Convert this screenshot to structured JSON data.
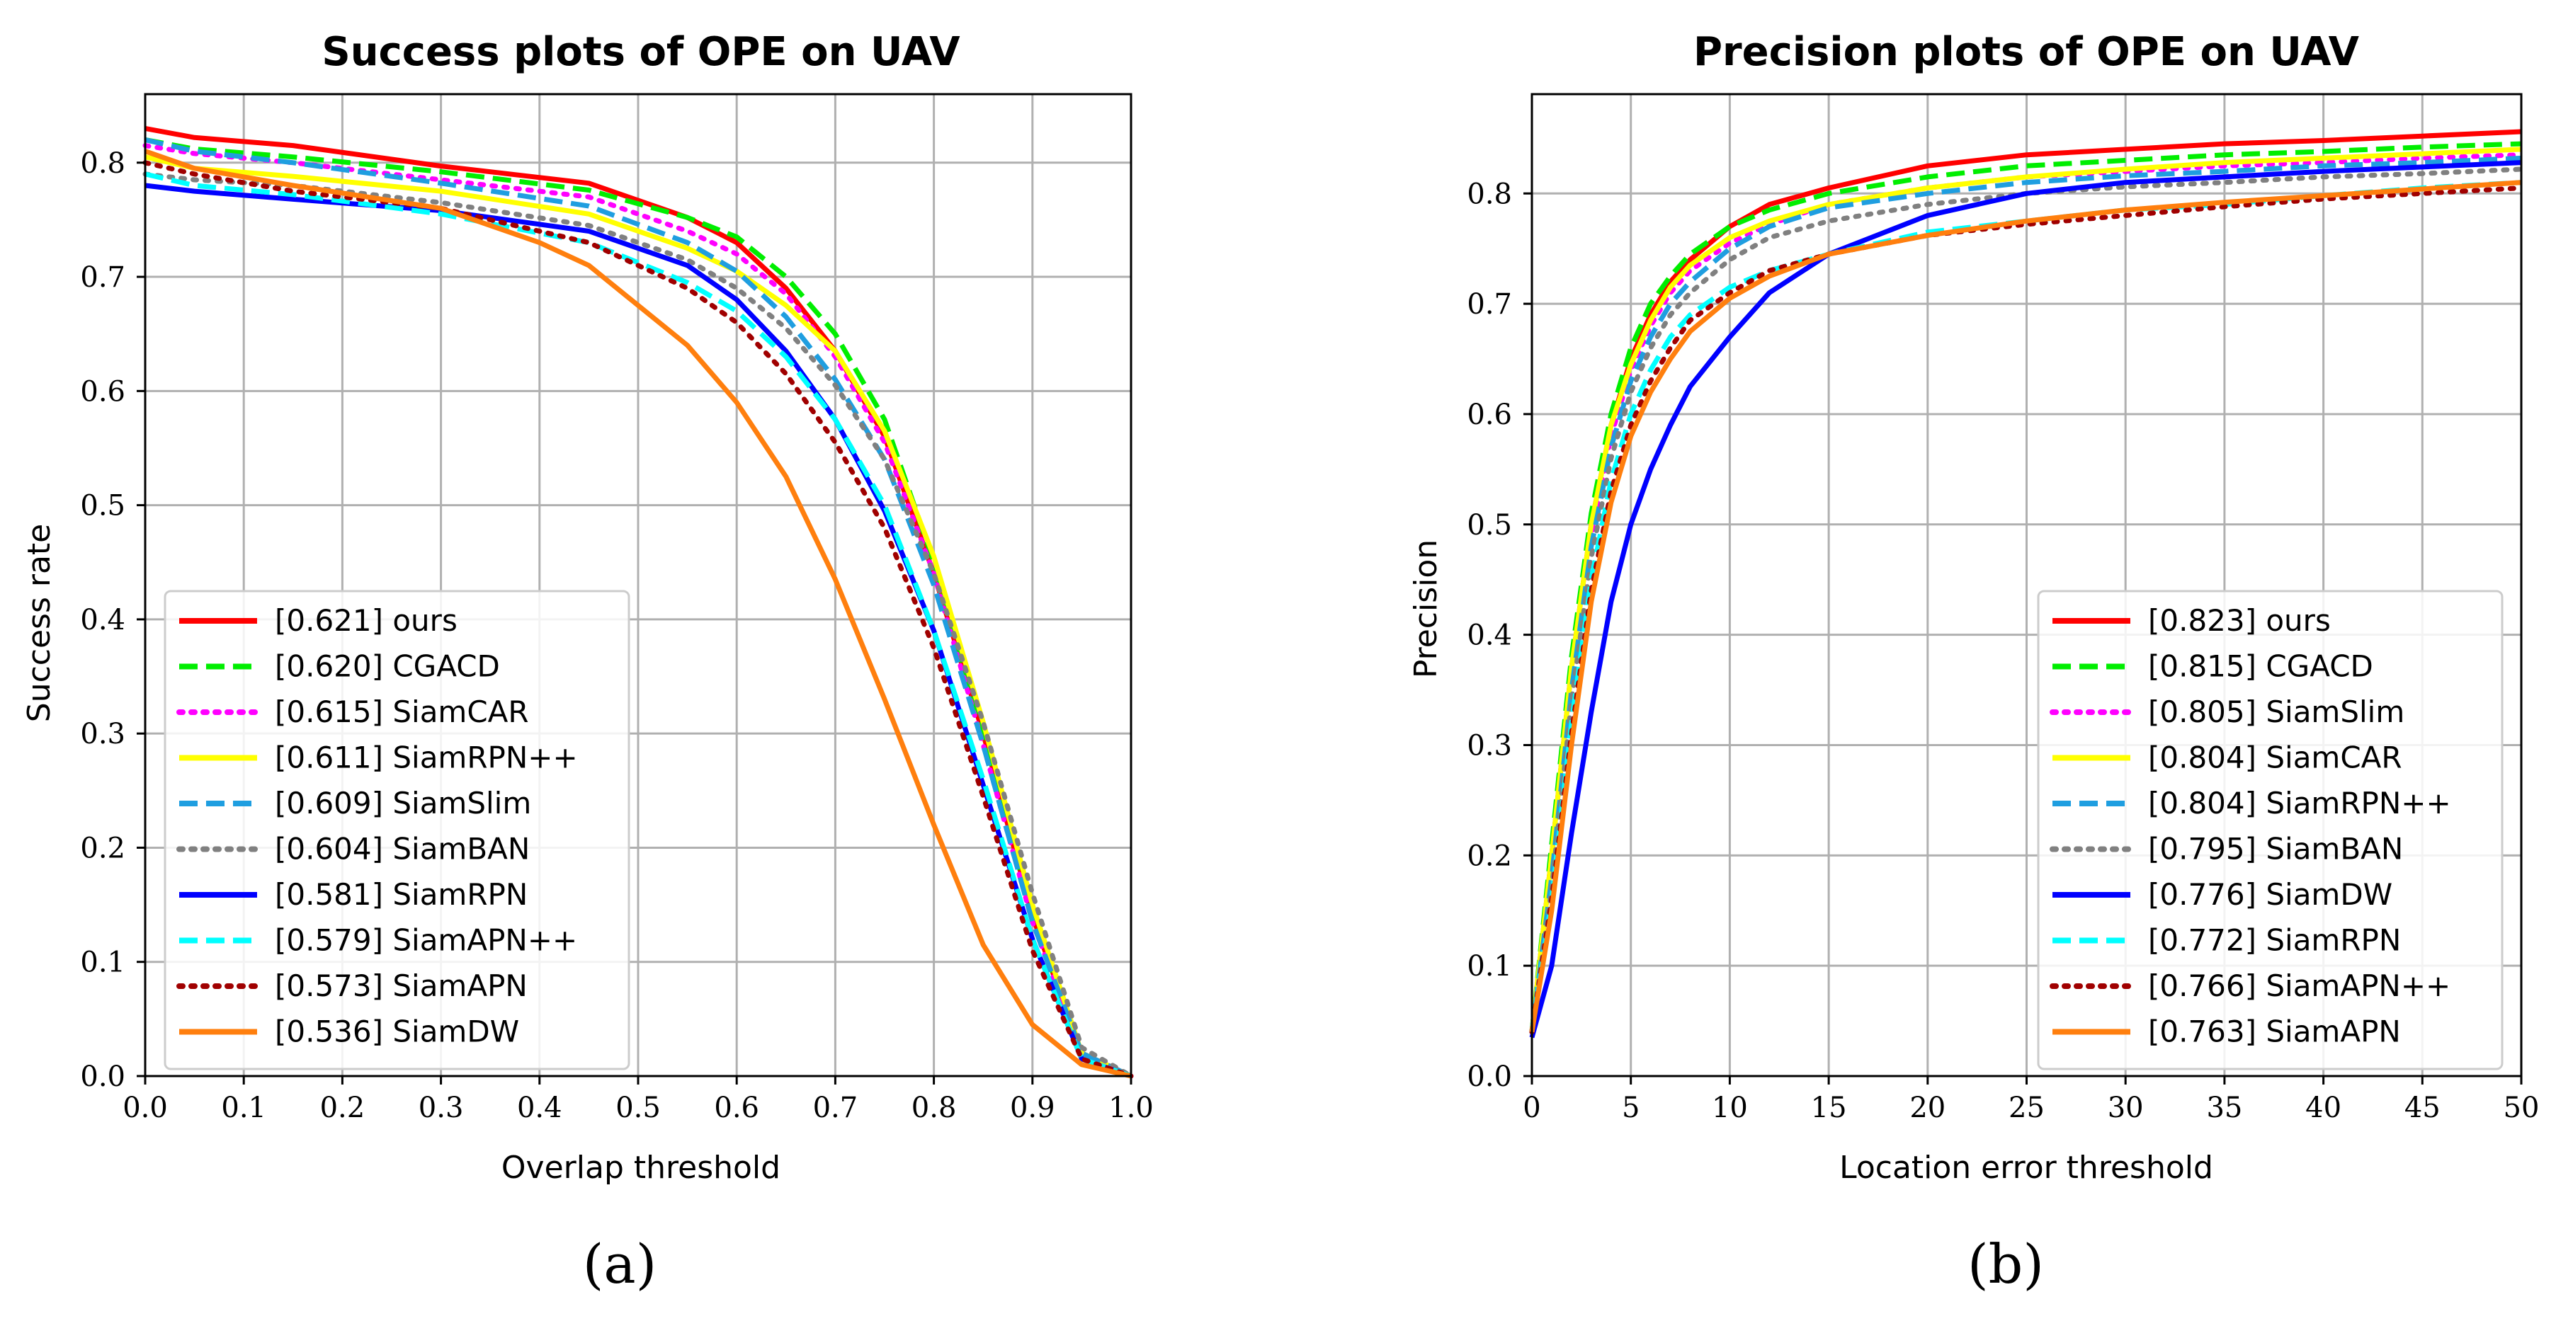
{
  "chart_data": [
    {
      "type": "line",
      "title": "Success plots of OPE on UAV",
      "xlabel": "Overlap threshold",
      "ylabel": "Success rate",
      "caption": "(a)",
      "xlim": [
        0,
        1
      ],
      "ylim": [
        0,
        0.86
      ],
      "xticks": [
        0.0,
        0.1,
        0.2,
        0.3,
        0.4,
        0.5,
        0.6,
        0.7,
        0.8,
        0.9,
        1.0
      ],
      "yticks": [
        0.0,
        0.1,
        0.2,
        0.3,
        0.4,
        0.5,
        0.6,
        0.7,
        0.8
      ],
      "xtick_labels": [
        "0.0",
        "0.1",
        "0.2",
        "0.3",
        "0.4",
        "0.5",
        "0.6",
        "0.7",
        "0.8",
        "0.9",
        "1.0"
      ],
      "ytick_labels": [
        "0.0",
        "0.1",
        "0.2",
        "0.3",
        "0.4",
        "0.5",
        "0.6",
        "0.7",
        "0.8"
      ],
      "grid": true,
      "legend_position": "lower-left",
      "series": [
        {
          "name": "[0.621] ours",
          "color": "#ff0000",
          "dash": "solid",
          "x": [
            0,
            0.05,
            0.15,
            0.3,
            0.45,
            0.55,
            0.6,
            0.65,
            0.7,
            0.75,
            0.8,
            0.85,
            0.9,
            0.95,
            1.0
          ],
          "y": [
            0.83,
            0.822,
            0.815,
            0.797,
            0.782,
            0.752,
            0.73,
            0.69,
            0.635,
            0.56,
            0.44,
            0.3,
            0.14,
            0.02,
            0.0
          ]
        },
        {
          "name": "[0.620] CGACD",
          "color": "#00ee00",
          "dash": "dashed",
          "x": [
            0,
            0.05,
            0.15,
            0.3,
            0.45,
            0.55,
            0.6,
            0.65,
            0.7,
            0.75,
            0.8,
            0.85,
            0.9,
            0.95,
            1.0
          ],
          "y": [
            0.82,
            0.812,
            0.805,
            0.792,
            0.776,
            0.752,
            0.735,
            0.7,
            0.65,
            0.575,
            0.45,
            0.3,
            0.14,
            0.02,
            0.0
          ]
        },
        {
          "name": "[0.615] SiamCAR",
          "color": "#ff00ff",
          "dash": "dotted",
          "x": [
            0,
            0.05,
            0.15,
            0.3,
            0.45,
            0.55,
            0.6,
            0.65,
            0.7,
            0.75,
            0.8,
            0.85,
            0.9,
            0.95,
            1.0
          ],
          "y": [
            0.815,
            0.808,
            0.8,
            0.785,
            0.77,
            0.74,
            0.72,
            0.685,
            0.63,
            0.555,
            0.44,
            0.29,
            0.135,
            0.02,
            0.0
          ]
        },
        {
          "name": "[0.611] SiamRPN++",
          "color": "#ffff00",
          "dash": "solid",
          "x": [
            0,
            0.05,
            0.15,
            0.3,
            0.45,
            0.55,
            0.6,
            0.65,
            0.7,
            0.75,
            0.8,
            0.85,
            0.9,
            0.95,
            1.0
          ],
          "y": [
            0.805,
            0.795,
            0.788,
            0.775,
            0.755,
            0.725,
            0.705,
            0.675,
            0.635,
            0.565,
            0.455,
            0.31,
            0.15,
            0.02,
            0.0
          ]
        },
        {
          "name": "[0.609] SiamSlim",
          "color": "#1f9ee0",
          "dash": "dashed",
          "x": [
            0,
            0.05,
            0.15,
            0.3,
            0.45,
            0.55,
            0.6,
            0.65,
            0.7,
            0.75,
            0.8,
            0.85,
            0.9,
            0.95,
            1.0
          ],
          "y": [
            0.82,
            0.81,
            0.8,
            0.782,
            0.762,
            0.73,
            0.705,
            0.665,
            0.61,
            0.54,
            0.43,
            0.29,
            0.135,
            0.02,
            0.0
          ]
        },
        {
          "name": "[0.604] SiamBAN",
          "color": "#808080",
          "dash": "dotted",
          "x": [
            0,
            0.05,
            0.15,
            0.3,
            0.45,
            0.55,
            0.6,
            0.65,
            0.7,
            0.75,
            0.8,
            0.85,
            0.9,
            0.95,
            1.0
          ],
          "y": [
            0.79,
            0.785,
            0.78,
            0.765,
            0.745,
            0.715,
            0.69,
            0.655,
            0.605,
            0.54,
            0.44,
            0.31,
            0.16,
            0.025,
            0.0
          ]
        },
        {
          "name": "[0.581] SiamRPN",
          "color": "#0000ff",
          "dash": "solid",
          "x": [
            0,
            0.05,
            0.15,
            0.3,
            0.45,
            0.55,
            0.6,
            0.65,
            0.7,
            0.75,
            0.8,
            0.85,
            0.9,
            0.95,
            1.0
          ],
          "y": [
            0.78,
            0.775,
            0.768,
            0.758,
            0.74,
            0.71,
            0.68,
            0.635,
            0.575,
            0.495,
            0.39,
            0.255,
            0.12,
            0.015,
            0.0
          ]
        },
        {
          "name": "[0.579] SiamAPN++",
          "color": "#00ffff",
          "dash": "dashed",
          "x": [
            0,
            0.05,
            0.15,
            0.3,
            0.45,
            0.55,
            0.6,
            0.65,
            0.7,
            0.75,
            0.8,
            0.85,
            0.9,
            0.95,
            1.0
          ],
          "y": [
            0.79,
            0.78,
            0.772,
            0.755,
            0.73,
            0.695,
            0.67,
            0.63,
            0.575,
            0.5,
            0.39,
            0.26,
            0.12,
            0.015,
            0.0
          ]
        },
        {
          "name": "[0.573] SiamAPN",
          "color": "#a00000",
          "dash": "dotted",
          "x": [
            0,
            0.05,
            0.15,
            0.3,
            0.45,
            0.55,
            0.6,
            0.65,
            0.7,
            0.75,
            0.8,
            0.85,
            0.9,
            0.95,
            1.0
          ],
          "y": [
            0.8,
            0.79,
            0.775,
            0.76,
            0.73,
            0.69,
            0.66,
            0.615,
            0.555,
            0.48,
            0.375,
            0.245,
            0.11,
            0.015,
            0.0
          ]
        },
        {
          "name": "[0.536] SiamDW",
          "color": "#ff7f0e",
          "dash": "solid",
          "x": [
            0,
            0.05,
            0.15,
            0.3,
            0.4,
            0.45,
            0.5,
            0.55,
            0.6,
            0.65,
            0.7,
            0.75,
            0.8,
            0.85,
            0.9,
            0.95,
            1.0
          ],
          "y": [
            0.81,
            0.795,
            0.78,
            0.76,
            0.73,
            0.71,
            0.675,
            0.64,
            0.59,
            0.525,
            0.435,
            0.33,
            0.22,
            0.115,
            0.045,
            0.01,
            0.0
          ]
        }
      ]
    },
    {
      "type": "line",
      "title": "Precision plots of OPE on UAV",
      "xlabel": "Location error threshold",
      "ylabel": "Precision",
      "caption": "(b)",
      "xlim": [
        0,
        50
      ],
      "ylim": [
        0,
        0.89
      ],
      "xticks": [
        0,
        5,
        10,
        15,
        20,
        25,
        30,
        35,
        40,
        45,
        50
      ],
      "yticks": [
        0.0,
        0.1,
        0.2,
        0.3,
        0.4,
        0.5,
        0.6,
        0.7,
        0.8
      ],
      "xtick_labels": [
        "0",
        "5",
        "10",
        "15",
        "20",
        "25",
        "30",
        "35",
        "40",
        "45",
        "50"
      ],
      "ytick_labels": [
        "0.0",
        "0.1",
        "0.2",
        "0.3",
        "0.4",
        "0.5",
        "0.6",
        "0.7",
        "0.8"
      ],
      "grid": true,
      "legend_position": "lower-right",
      "series": [
        {
          "name": "[0.823] ours",
          "color": "#ff0000",
          "dash": "solid",
          "x": [
            0,
            1,
            2,
            3,
            4,
            5,
            6,
            7,
            8,
            10,
            12,
            15,
            20,
            25,
            30,
            35,
            40,
            45,
            50
          ],
          "y": [
            0.04,
            0.2,
            0.37,
            0.5,
            0.59,
            0.65,
            0.69,
            0.72,
            0.74,
            0.77,
            0.79,
            0.805,
            0.825,
            0.835,
            0.84,
            0.845,
            0.848,
            0.852,
            0.856
          ]
        },
        {
          "name": "[0.815] CGACD",
          "color": "#00ee00",
          "dash": "dashed",
          "x": [
            0,
            1,
            2,
            3,
            4,
            5,
            6,
            7,
            8,
            10,
            12,
            15,
            20,
            25,
            30,
            35,
            40,
            45,
            50
          ],
          "y": [
            0.04,
            0.21,
            0.38,
            0.51,
            0.6,
            0.66,
            0.7,
            0.725,
            0.745,
            0.77,
            0.785,
            0.8,
            0.815,
            0.825,
            0.83,
            0.835,
            0.838,
            0.842,
            0.845
          ]
        },
        {
          "name": "[0.805] SiamSlim",
          "color": "#ff00ff",
          "dash": "dotted",
          "x": [
            0,
            1,
            2,
            3,
            4,
            5,
            6,
            7,
            8,
            10,
            12,
            15,
            20,
            25,
            30,
            35,
            40,
            45,
            50
          ],
          "y": [
            0.04,
            0.19,
            0.36,
            0.49,
            0.58,
            0.64,
            0.68,
            0.71,
            0.73,
            0.755,
            0.772,
            0.79,
            0.805,
            0.815,
            0.82,
            0.825,
            0.828,
            0.832,
            0.835
          ]
        },
        {
          "name": "[0.804] SiamCAR",
          "color": "#ffff00",
          "dash": "solid",
          "x": [
            0,
            1,
            2,
            3,
            4,
            5,
            6,
            7,
            8,
            10,
            12,
            15,
            20,
            25,
            30,
            35,
            40,
            45,
            50
          ],
          "y": [
            0.04,
            0.2,
            0.37,
            0.5,
            0.59,
            0.645,
            0.685,
            0.715,
            0.735,
            0.76,
            0.775,
            0.79,
            0.805,
            0.815,
            0.822,
            0.828,
            0.832,
            0.836,
            0.84
          ]
        },
        {
          "name": "[0.804] SiamRPN++",
          "color": "#1f9ee0",
          "dash": "dashed",
          "x": [
            0,
            1,
            2,
            3,
            4,
            5,
            6,
            7,
            8,
            10,
            12,
            15,
            20,
            25,
            30,
            35,
            40,
            45,
            50
          ],
          "y": [
            0.04,
            0.18,
            0.35,
            0.48,
            0.57,
            0.63,
            0.67,
            0.7,
            0.72,
            0.75,
            0.77,
            0.787,
            0.8,
            0.81,
            0.816,
            0.82,
            0.825,
            0.828,
            0.832
          ]
        },
        {
          "name": "[0.795] SiamBAN",
          "color": "#808080",
          "dash": "dotted",
          "x": [
            0,
            1,
            2,
            3,
            4,
            5,
            6,
            7,
            8,
            10,
            12,
            15,
            20,
            25,
            30,
            35,
            40,
            45,
            50
          ],
          "y": [
            0.04,
            0.17,
            0.34,
            0.47,
            0.56,
            0.62,
            0.66,
            0.69,
            0.71,
            0.74,
            0.76,
            0.775,
            0.79,
            0.8,
            0.806,
            0.81,
            0.815,
            0.818,
            0.822
          ]
        },
        {
          "name": "[0.776] SiamDW",
          "color": "#0000ff",
          "dash": "solid",
          "x": [
            0,
            1,
            2,
            3,
            4,
            5,
            6,
            7,
            8,
            10,
            12,
            15,
            20,
            25,
            30,
            35,
            40,
            45,
            50
          ],
          "y": [
            0.035,
            0.1,
            0.22,
            0.33,
            0.43,
            0.5,
            0.55,
            0.59,
            0.625,
            0.67,
            0.71,
            0.745,
            0.78,
            0.8,
            0.81,
            0.815,
            0.82,
            0.824,
            0.828
          ]
        },
        {
          "name": "[0.772] SiamRPN",
          "color": "#00ffff",
          "dash": "dashed",
          "x": [
            0,
            1,
            2,
            3,
            4,
            5,
            6,
            7,
            8,
            10,
            12,
            15,
            20,
            25,
            30,
            35,
            40,
            45,
            50
          ],
          "y": [
            0.04,
            0.16,
            0.32,
            0.45,
            0.54,
            0.6,
            0.64,
            0.67,
            0.69,
            0.715,
            0.73,
            0.745,
            0.765,
            0.775,
            0.785,
            0.79,
            0.798,
            0.805,
            0.81
          ]
        },
        {
          "name": "[0.766] SiamAPN++",
          "color": "#a00000",
          "dash": "dotted",
          "x": [
            0,
            1,
            2,
            3,
            4,
            5,
            6,
            7,
            8,
            10,
            12,
            15,
            20,
            25,
            30,
            35,
            40,
            45,
            50
          ],
          "y": [
            0.04,
            0.16,
            0.31,
            0.44,
            0.53,
            0.59,
            0.63,
            0.66,
            0.685,
            0.71,
            0.73,
            0.745,
            0.762,
            0.772,
            0.78,
            0.788,
            0.795,
            0.8,
            0.805
          ]
        },
        {
          "name": "[0.763] SiamAPN",
          "color": "#ff7f0e",
          "dash": "solid",
          "x": [
            0,
            1,
            2,
            3,
            4,
            5,
            6,
            7,
            8,
            10,
            12,
            15,
            20,
            25,
            30,
            35,
            40,
            45,
            50
          ],
          "y": [
            0.04,
            0.15,
            0.3,
            0.43,
            0.52,
            0.58,
            0.62,
            0.65,
            0.675,
            0.705,
            0.725,
            0.745,
            0.762,
            0.775,
            0.785,
            0.792,
            0.798,
            0.804,
            0.81
          ]
        }
      ]
    }
  ]
}
